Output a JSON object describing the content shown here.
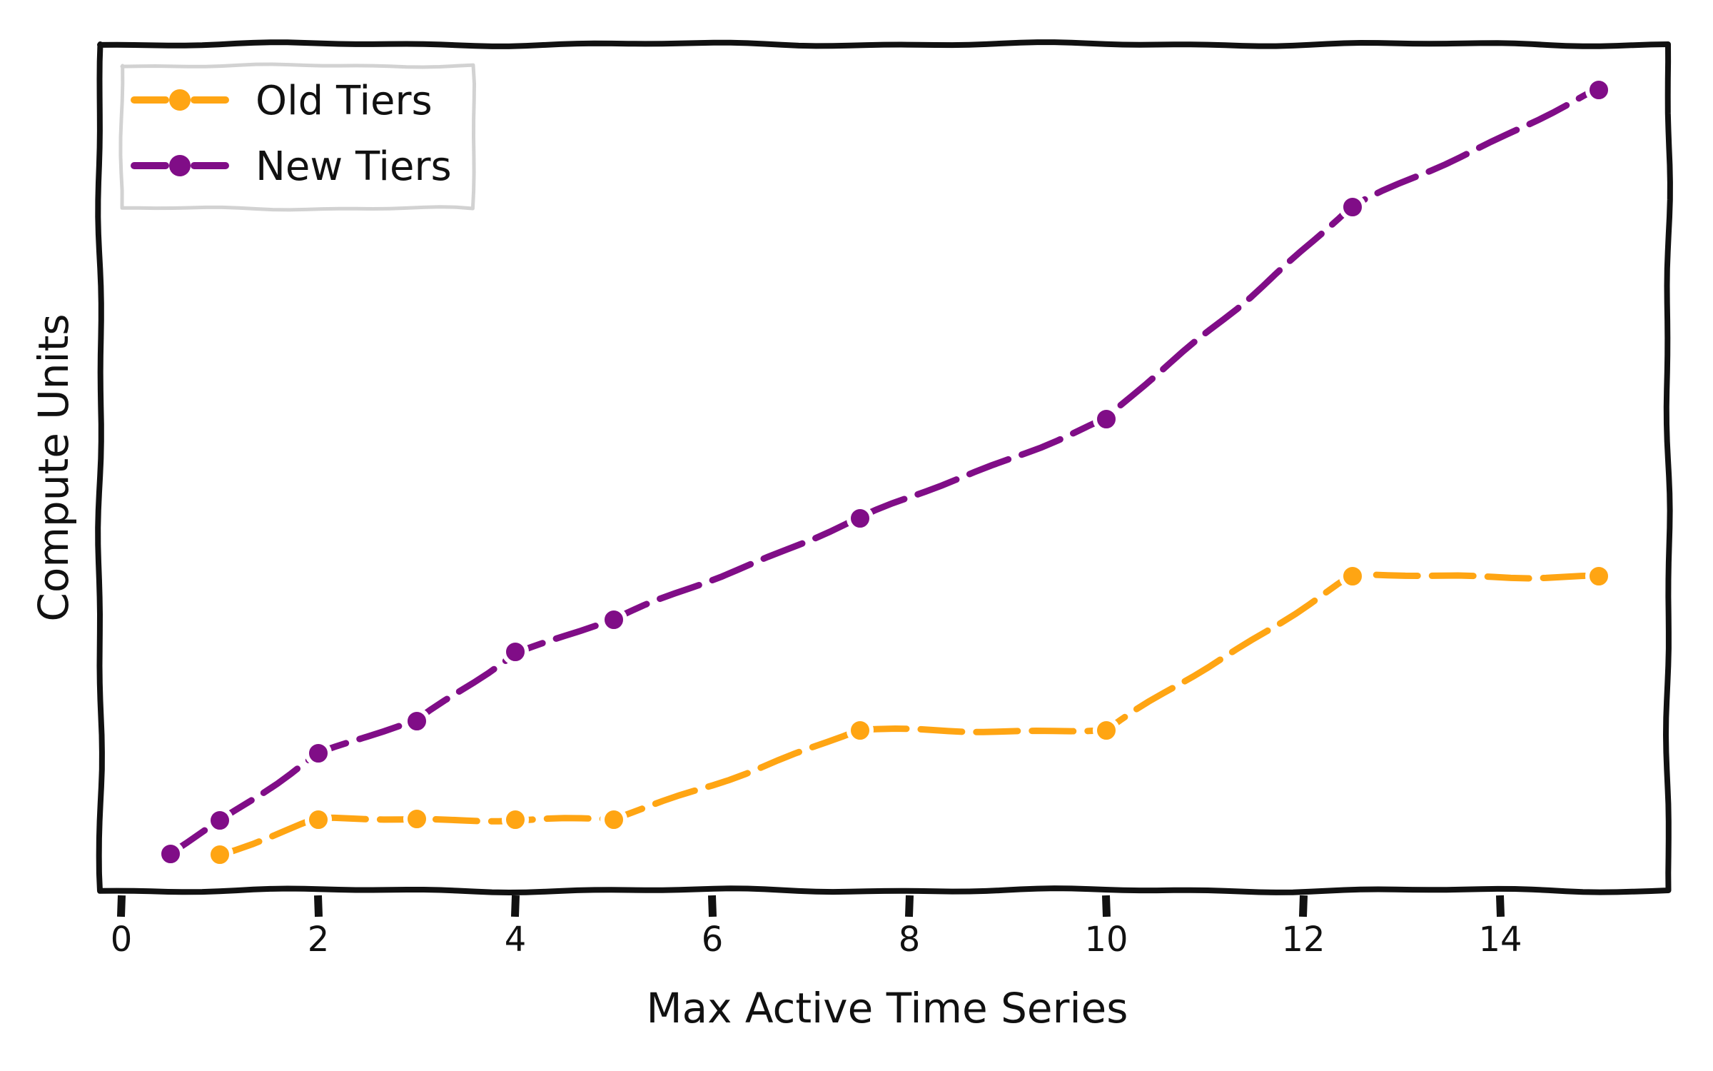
{
  "page": {
    "background": "#ffffff"
  },
  "chart_data": {
    "type": "line",
    "title": "",
    "xlabel": "Max Active Time Series",
    "ylabel": "Compute Units",
    "style": "xkcd-sketch",
    "grid": false,
    "x_tick_labels": [
      "0",
      "2",
      "4",
      "6",
      "8",
      "10",
      "12",
      "14"
    ],
    "x_tick_values": [
      0,
      2,
      4,
      6,
      8,
      10,
      12,
      14
    ],
    "xlim": [
      -0.217,
      15.703
    ],
    "ylim": [
      0,
      1185
    ],
    "y_tick_labels": [],
    "y_axis_unlabeled": true,
    "legend": {
      "position": "upper-left",
      "entries": [
        "Old Tiers",
        "New Tiers"
      ]
    },
    "series": [
      {
        "name": "Old Tiers",
        "color": "#FFA513",
        "marker": "circle",
        "linestyle": "dashed",
        "x": [
          1,
          2,
          3,
          4,
          5,
          7.5,
          10,
          12.5,
          15
        ],
        "y": [
          50,
          99,
          100,
          99,
          99,
          224,
          224,
          440,
          440
        ]
      },
      {
        "name": "New Tiers",
        "color": "#800D87",
        "marker": "circle",
        "linestyle": "dashed",
        "x": [
          0.5,
          1,
          2,
          3,
          4,
          5,
          7.5,
          10,
          12.5,
          15
        ],
        "y": [
          51,
          98,
          192,
          237,
          334,
          379,
          521,
          660,
          957,
          1121
        ]
      }
    ],
    "colors": {
      "axis": "#111111",
      "legend_border": "#d2d2d2",
      "background": "#ffffff"
    }
  }
}
